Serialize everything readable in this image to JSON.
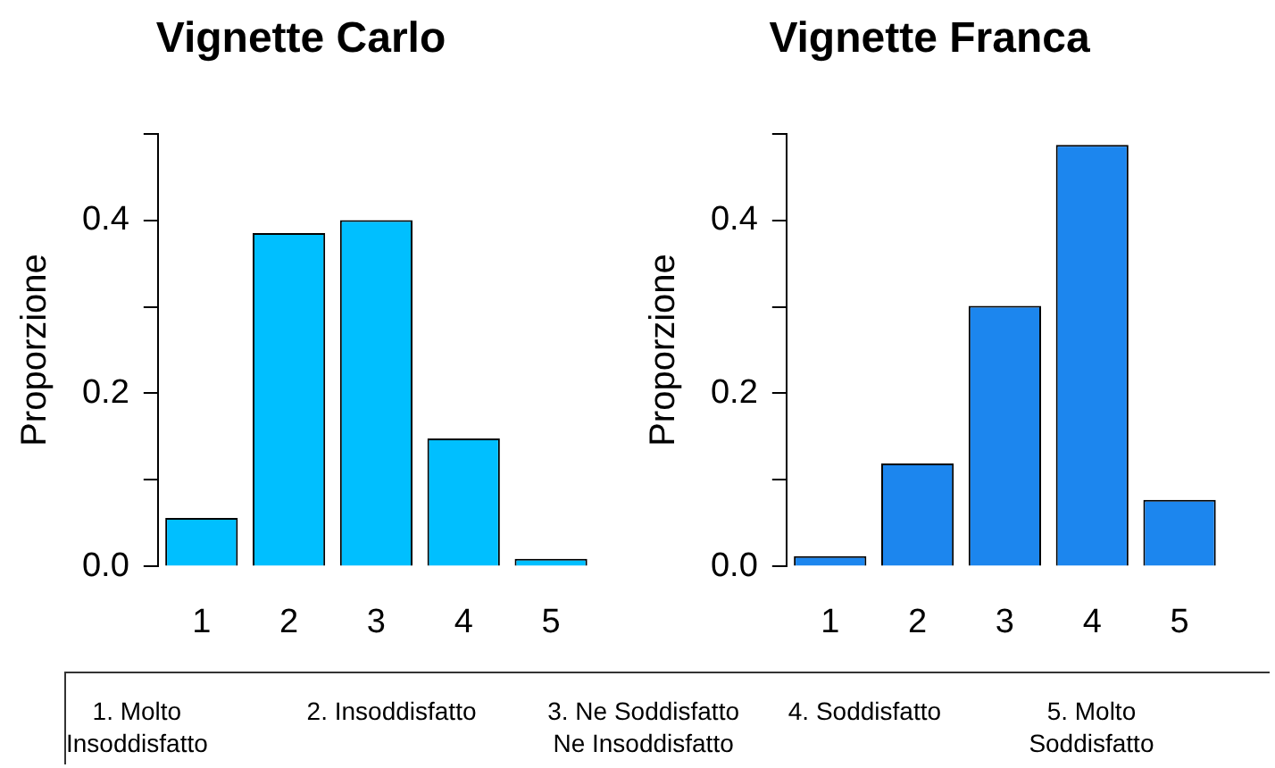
{
  "chart_data": [
    {
      "type": "bar",
      "title": "Vignette Carlo",
      "ylabel": "Proporzione",
      "categories": [
        "1",
        "2",
        "3",
        "4",
        "5"
      ],
      "values": [
        0.056,
        0.385,
        0.4,
        0.148,
        0.009
      ],
      "color": "#00bfff",
      "ylim": [
        0,
        0.5
      ],
      "yticks": [
        {
          "value": 0,
          "label": "0.0"
        },
        {
          "value": 0.1,
          "label": null
        },
        {
          "value": 0.2,
          "label": "0.2"
        },
        {
          "value": 0.3,
          "label": null
        },
        {
          "value": 0.4,
          "label": "0.4"
        },
        {
          "value": 0.5,
          "label": null
        }
      ]
    },
    {
      "type": "bar",
      "title": "Vignette Franca",
      "ylabel": "Proporzione",
      "categories": [
        "1",
        "2",
        "3",
        "4",
        "5"
      ],
      "values": [
        0.012,
        0.119,
        0.301,
        0.487,
        0.077
      ],
      "color": "#1c86ee",
      "ylim": [
        0,
        0.5
      ],
      "yticks": [
        {
          "value": 0,
          "label": "0.0"
        },
        {
          "value": 0.1,
          "label": null
        },
        {
          "value": 0.2,
          "label": "0.2"
        },
        {
          "value": 0.3,
          "label": null
        },
        {
          "value": 0.4,
          "label": "0.4"
        },
        {
          "value": 0.5,
          "label": null
        }
      ]
    },
    {
      "type": "other",
      "annotations": [
        "1. Molto\nInsoddisfatto",
        "2. Insoddisfatto",
        "3. Ne Soddisfatto\nNe Insoddisfatto",
        "4. Soddisfatto",
        "5. Molto\nSoddisfatto"
      ]
    }
  ]
}
